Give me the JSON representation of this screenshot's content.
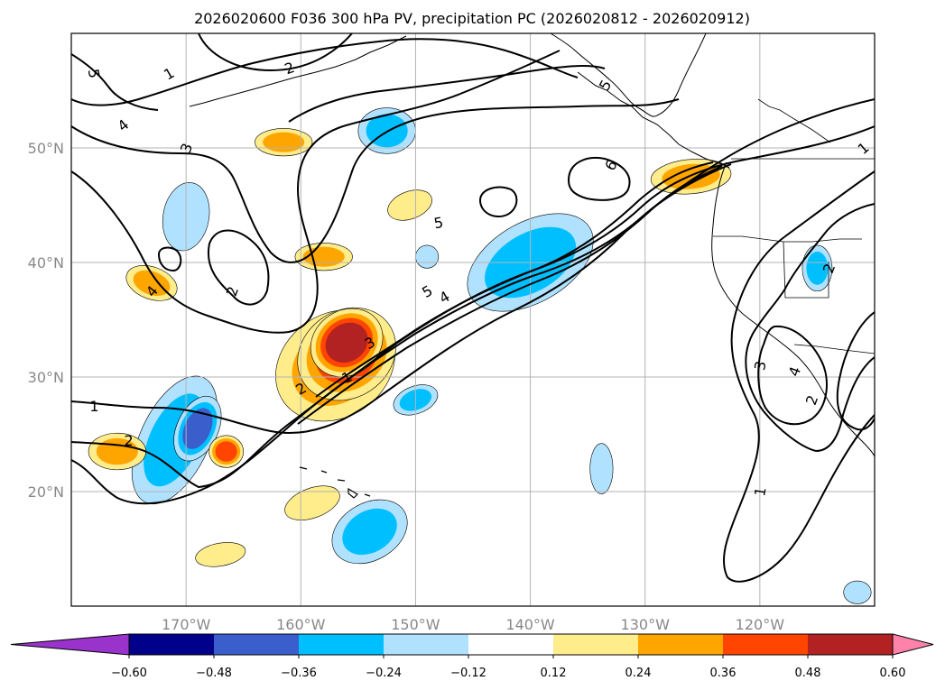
{
  "chart_data": {
    "type": "contour-map",
    "title": "2026020600 F036 300 hPa PV, precipitation PC (2026020812 - 2026020912)",
    "map": {
      "lon_range": [
        -180,
        -110
      ],
      "lat_range": [
        10,
        60
      ],
      "x_ticks": [
        {
          "lon": -170,
          "label": "170°W"
        },
        {
          "lon": -160,
          "label": "160°W"
        },
        {
          "lon": -150,
          "label": "150°W"
        },
        {
          "lon": -140,
          "label": "140°W"
        },
        {
          "lon": -130,
          "label": "130°W"
        },
        {
          "lon": -120,
          "label": "120°W"
        }
      ],
      "y_ticks": [
        {
          "lat": 20,
          "label": "20°N"
        },
        {
          "lat": 30,
          "label": "30°N"
        },
        {
          "lat": 40,
          "label": "40°N"
        },
        {
          "lat": 50,
          "label": "50°N"
        }
      ],
      "grid": true
    },
    "colorbar": {
      "levels": [
        -0.6,
        -0.48,
        -0.36,
        -0.24,
        -0.12,
        0.12,
        0.24,
        0.36,
        0.48,
        0.6
      ],
      "labels": [
        "−0.60",
        "−0.48",
        "−0.36",
        "−0.24",
        "−0.12",
        "0.12",
        "0.24",
        "0.36",
        "0.48",
        "0.60"
      ],
      "colors": [
        "#9933cc",
        "#00008b",
        "#3a5fcd",
        "#00bfff",
        "#b0e2ff",
        "#ffffff",
        "#ffec8b",
        "#ffa500",
        "#ff4500",
        "#b22222",
        "#ff82ab"
      ],
      "extend": "both"
    },
    "shading": [
      {
        "lon": -157,
        "lat": 31,
        "rx": 5.5,
        "ry": 4.5,
        "rot": -35,
        "level": 0.36
      },
      {
        "lon": -156,
        "lat": 32,
        "rx": 4.5,
        "ry": 3.8,
        "rot": -35,
        "level": 0.48
      },
      {
        "lon": -156,
        "lat": 33,
        "rx": 3.3,
        "ry": 2.8,
        "rot": -35,
        "level": 0.6
      },
      {
        "lon": -140,
        "lat": 40,
        "rx": 6,
        "ry": 3.5,
        "rot": -30,
        "level": -0.36
      },
      {
        "lon": -171,
        "lat": 24.5,
        "rx": 3,
        "ry": 6,
        "rot": 25,
        "level": -0.36
      },
      {
        "lon": -169,
        "lat": 25.5,
        "rx": 1.8,
        "ry": 3,
        "rot": 25,
        "level": -0.48
      },
      {
        "lon": -176,
        "lat": 23.5,
        "rx": 2.5,
        "ry": 1.6,
        "rot": 0,
        "level": 0.36
      },
      {
        "lon": -166.5,
        "lat": 23.5,
        "rx": 1.5,
        "ry": 1.4,
        "rot": 0,
        "level": 0.48
      },
      {
        "lon": -154,
        "lat": 16.5,
        "rx": 3.5,
        "ry": 2.5,
        "rot": -30,
        "level": -0.36
      },
      {
        "lon": -159,
        "lat": 19,
        "rx": 2.5,
        "ry": 1.3,
        "rot": -20,
        "level": 0.24
      },
      {
        "lon": -167,
        "lat": 14.5,
        "rx": 2.2,
        "ry": 1,
        "rot": -10,
        "level": 0.24
      },
      {
        "lon": -150,
        "lat": 28,
        "rx": 2,
        "ry": 1.2,
        "rot": -20,
        "level": -0.36
      },
      {
        "lon": -126,
        "lat": 47.5,
        "rx": 3.5,
        "ry": 1.5,
        "rot": -5,
        "level": 0.36
      },
      {
        "lon": -152.5,
        "lat": 51.5,
        "rx": 2.5,
        "ry": 2,
        "rot": 0,
        "level": -0.36
      },
      {
        "lon": -161.5,
        "lat": 50.5,
        "rx": 2.5,
        "ry": 1.2,
        "rot": 0,
        "level": 0.36
      },
      {
        "lon": -170,
        "lat": 44,
        "rx": 2,
        "ry": 3,
        "rot": 10,
        "level": -0.24
      },
      {
        "lon": -158,
        "lat": 40.5,
        "rx": 2.5,
        "ry": 1.2,
        "rot": 0,
        "level": 0.36
      },
      {
        "lon": -150.5,
        "lat": 45,
        "rx": 2,
        "ry": 1.2,
        "rot": -20,
        "level": 0.24
      },
      {
        "lon": -173,
        "lat": 38.2,
        "rx": 2.3,
        "ry": 1.4,
        "rot": 20,
        "level": 0.36
      },
      {
        "lon": -115,
        "lat": 39.5,
        "rx": 1.3,
        "ry": 2,
        "rot": 0,
        "level": -0.36
      },
      {
        "lon": -133.8,
        "lat": 22,
        "rx": 1,
        "ry": 2.2,
        "rot": 0,
        "level": -0.24
      },
      {
        "lon": -149,
        "lat": 40.5,
        "rx": 1,
        "ry": 1,
        "rot": 0,
        "level": -0.24
      },
      {
        "lon": -111.5,
        "lat": 11.2,
        "rx": 1.2,
        "ry": 1,
        "rot": 0,
        "level": -0.24
      }
    ],
    "contour_labels": [
      {
        "lon": -178,
        "lat": 56.5,
        "text": "5",
        "rot": 80
      },
      {
        "lon": -175.5,
        "lat": 52,
        "text": "4",
        "rot": -40
      },
      {
        "lon": -170,
        "lat": 50,
        "text": "3",
        "rot": -70
      },
      {
        "lon": -161,
        "lat": 57,
        "text": "2",
        "rot": -20
      },
      {
        "lon": -133.5,
        "lat": 55.5,
        "text": "5",
        "rot": -60
      },
      {
        "lon": -133,
        "lat": 48.5,
        "text": "6",
        "rot": -60
      },
      {
        "lon": -148,
        "lat": 43.5,
        "text": "5",
        "rot": -10
      },
      {
        "lon": -173,
        "lat": 37.5,
        "text": "4",
        "rot": -50
      },
      {
        "lon": -166,
        "lat": 37.5,
        "text": "2",
        "rot": -70
      },
      {
        "lon": -149,
        "lat": 37.5,
        "text": "5",
        "rot": -30
      },
      {
        "lon": -147.5,
        "lat": 37,
        "text": "4",
        "rot": -30
      },
      {
        "lon": -154,
        "lat": 33,
        "text": "3",
        "rot": -30
      },
      {
        "lon": -160,
        "lat": 29,
        "text": "2",
        "rot": -30
      },
      {
        "lon": -156,
        "lat": 30,
        "text": "1",
        "rot": -30
      },
      {
        "lon": -178,
        "lat": 27.5,
        "text": "1",
        "rot": 0
      },
      {
        "lon": -175,
        "lat": 24.5,
        "text": "2",
        "rot": 0
      },
      {
        "lon": -120,
        "lat": 20,
        "text": "1",
        "rot": -80
      },
      {
        "lon": -120,
        "lat": 31,
        "text": "3",
        "rot": -80
      },
      {
        "lon": -114,
        "lat": 39.5,
        "text": "2",
        "rot": -70
      },
      {
        "lon": -117,
        "lat": 30.5,
        "text": "4",
        "rot": -70
      },
      {
        "lon": -115.5,
        "lat": 28,
        "text": "2",
        "rot": -70
      },
      {
        "lon": -111,
        "lat": 50,
        "text": "1",
        "rot": -40
      },
      {
        "lon": -171.5,
        "lat": 56.5,
        "text": "1",
        "rot": -30
      }
    ]
  }
}
